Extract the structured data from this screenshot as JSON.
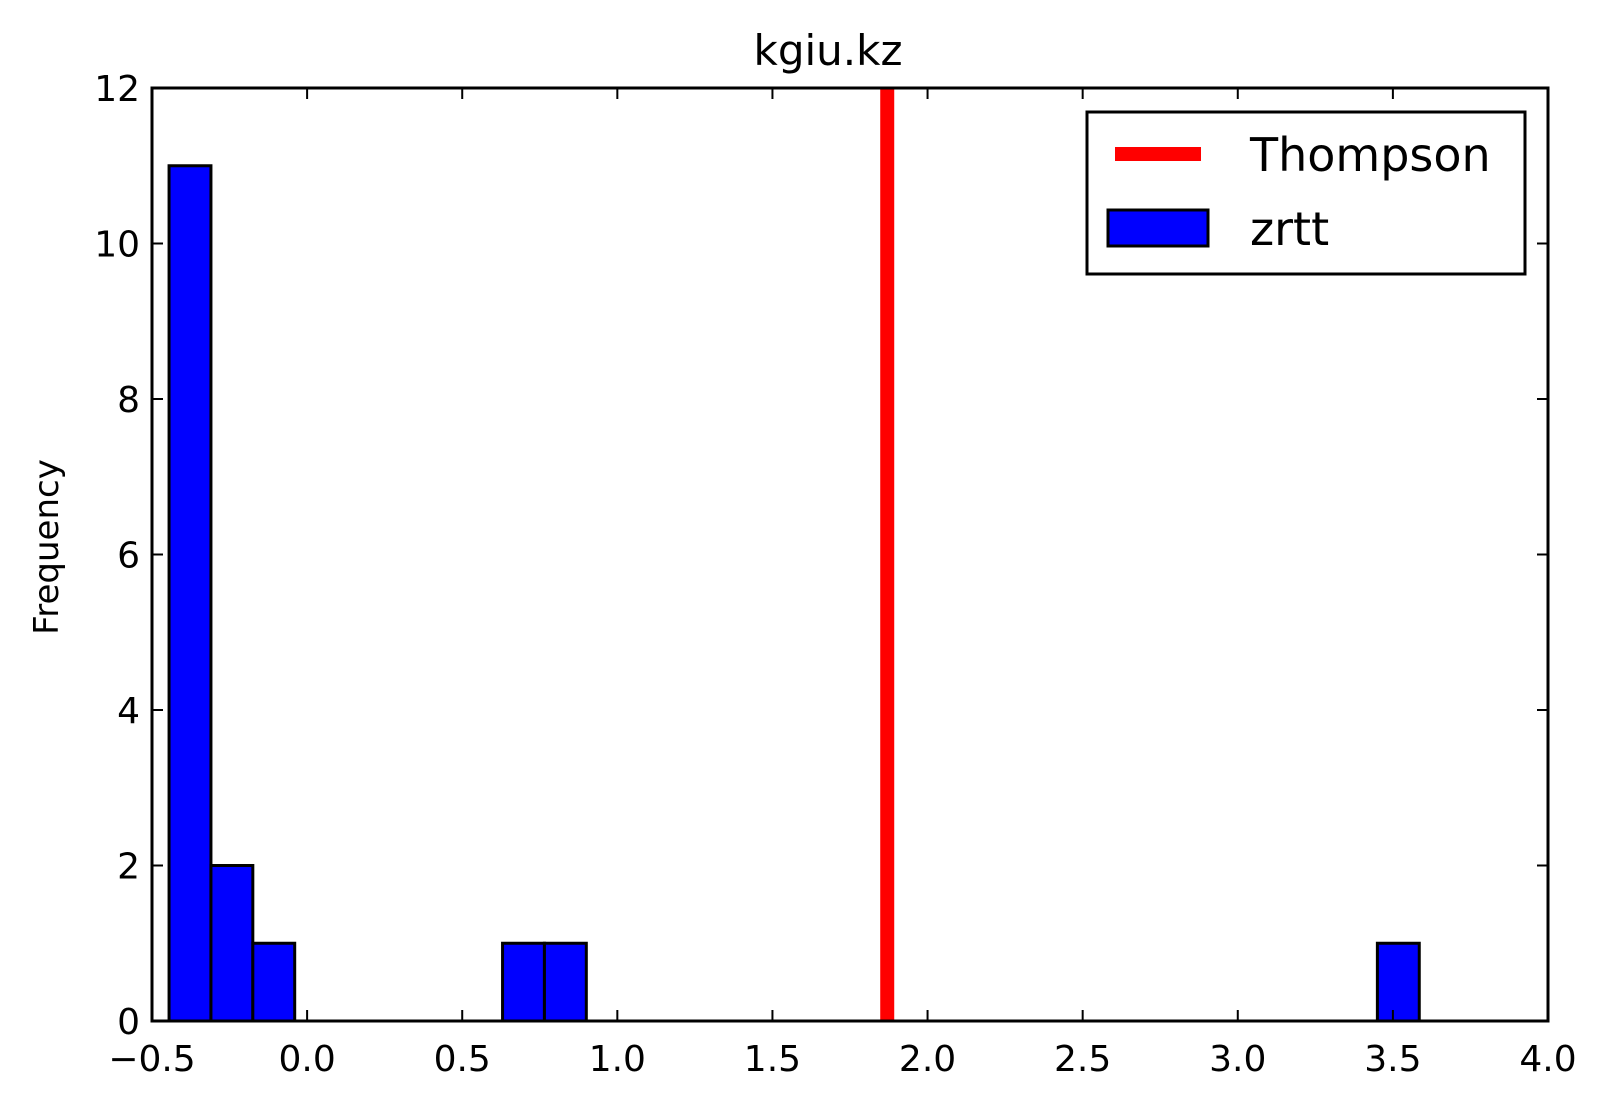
{
  "chart_data": {
    "type": "bar",
    "title": "kgiu.kz",
    "xlabel": "",
    "ylabel": "Frequency",
    "xlim": [
      -0.5,
      4.0
    ],
    "ylim": [
      0,
      12
    ],
    "xticks": [
      -0.5,
      0.0,
      0.5,
      1.0,
      1.5,
      2.0,
      2.5,
      3.0,
      3.5,
      4.0
    ],
    "xtick_labels": [
      "−0.5",
      "0.0",
      "0.5",
      "1.0",
      "1.5",
      "2.0",
      "2.5",
      "3.0",
      "3.5",
      "4.0"
    ],
    "yticks": [
      0,
      2,
      4,
      6,
      8,
      10,
      12
    ],
    "ytick_labels": [
      "0",
      "2",
      "4",
      "6",
      "8",
      "10",
      "12"
    ],
    "series": [
      {
        "name": "zrtt",
        "kind": "histogram",
        "color": "#0000ff",
        "bins": [
          {
            "x0": -0.445,
            "x1": -0.31,
            "count": 11
          },
          {
            "x0": -0.31,
            "x1": -0.175,
            "count": 2
          },
          {
            "x0": -0.175,
            "x1": -0.04,
            "count": 1
          },
          {
            "x0": 0.63,
            "x1": 0.765,
            "count": 1
          },
          {
            "x0": 0.765,
            "x1": 0.9,
            "count": 1
          },
          {
            "x0": 3.45,
            "x1": 3.585,
            "count": 1
          }
        ]
      },
      {
        "name": "Thompson",
        "kind": "vline",
        "color": "#ff0000",
        "x": 1.87
      }
    ],
    "legend": {
      "position": "top-right",
      "entries": [
        "Thompson",
        "zrtt"
      ]
    },
    "grid": false
  }
}
